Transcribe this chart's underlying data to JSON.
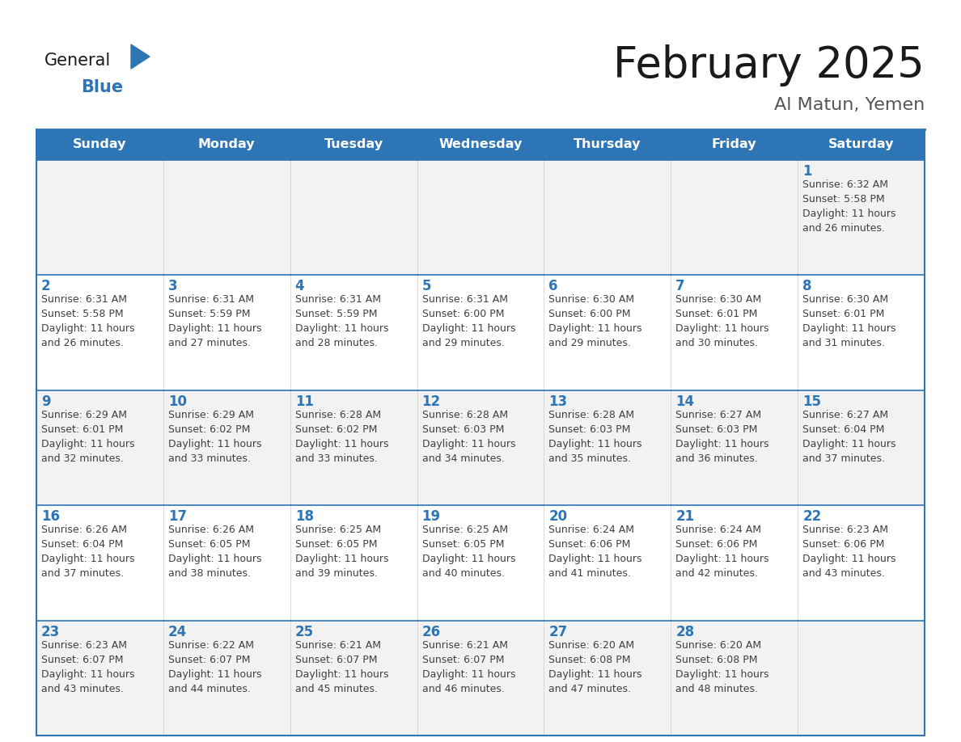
{
  "title": "February 2025",
  "subtitle": "Al Matun, Yemen",
  "days_of_week": [
    "Sunday",
    "Monday",
    "Tuesday",
    "Wednesday",
    "Thursday",
    "Friday",
    "Saturday"
  ],
  "header_bg": "#2E75B6",
  "header_text": "#FFFFFF",
  "cell_bg_even": "#F2F2F2",
  "cell_bg_odd": "#FFFFFF",
  "border_color": "#2E75B6",
  "day_num_color": "#2E75B6",
  "info_color": "#404040",
  "title_color": "#1a1a1a",
  "subtitle_color": "#555555",
  "weeks": [
    [
      null,
      null,
      null,
      null,
      null,
      null,
      1
    ],
    [
      2,
      3,
      4,
      5,
      6,
      7,
      8
    ],
    [
      9,
      10,
      11,
      12,
      13,
      14,
      15
    ],
    [
      16,
      17,
      18,
      19,
      20,
      21,
      22
    ],
    [
      23,
      24,
      25,
      26,
      27,
      28,
      null
    ]
  ],
  "cell_data": {
    "1": {
      "sunrise": "6:32 AM",
      "sunset": "5:58 PM",
      "daylight_hours": 11,
      "daylight_minutes": 26
    },
    "2": {
      "sunrise": "6:31 AM",
      "sunset": "5:58 PM",
      "daylight_hours": 11,
      "daylight_minutes": 26
    },
    "3": {
      "sunrise": "6:31 AM",
      "sunset": "5:59 PM",
      "daylight_hours": 11,
      "daylight_minutes": 27
    },
    "4": {
      "sunrise": "6:31 AM",
      "sunset": "5:59 PM",
      "daylight_hours": 11,
      "daylight_minutes": 28
    },
    "5": {
      "sunrise": "6:31 AM",
      "sunset": "6:00 PM",
      "daylight_hours": 11,
      "daylight_minutes": 29
    },
    "6": {
      "sunrise": "6:30 AM",
      "sunset": "6:00 PM",
      "daylight_hours": 11,
      "daylight_minutes": 29
    },
    "7": {
      "sunrise": "6:30 AM",
      "sunset": "6:01 PM",
      "daylight_hours": 11,
      "daylight_minutes": 30
    },
    "8": {
      "sunrise": "6:30 AM",
      "sunset": "6:01 PM",
      "daylight_hours": 11,
      "daylight_minutes": 31
    },
    "9": {
      "sunrise": "6:29 AM",
      "sunset": "6:01 PM",
      "daylight_hours": 11,
      "daylight_minutes": 32
    },
    "10": {
      "sunrise": "6:29 AM",
      "sunset": "6:02 PM",
      "daylight_hours": 11,
      "daylight_minutes": 33
    },
    "11": {
      "sunrise": "6:28 AM",
      "sunset": "6:02 PM",
      "daylight_hours": 11,
      "daylight_minutes": 33
    },
    "12": {
      "sunrise": "6:28 AM",
      "sunset": "6:03 PM",
      "daylight_hours": 11,
      "daylight_minutes": 34
    },
    "13": {
      "sunrise": "6:28 AM",
      "sunset": "6:03 PM",
      "daylight_hours": 11,
      "daylight_minutes": 35
    },
    "14": {
      "sunrise": "6:27 AM",
      "sunset": "6:03 PM",
      "daylight_hours": 11,
      "daylight_minutes": 36
    },
    "15": {
      "sunrise": "6:27 AM",
      "sunset": "6:04 PM",
      "daylight_hours": 11,
      "daylight_minutes": 37
    },
    "16": {
      "sunrise": "6:26 AM",
      "sunset": "6:04 PM",
      "daylight_hours": 11,
      "daylight_minutes": 37
    },
    "17": {
      "sunrise": "6:26 AM",
      "sunset": "6:05 PM",
      "daylight_hours": 11,
      "daylight_minutes": 38
    },
    "18": {
      "sunrise": "6:25 AM",
      "sunset": "6:05 PM",
      "daylight_hours": 11,
      "daylight_minutes": 39
    },
    "19": {
      "sunrise": "6:25 AM",
      "sunset": "6:05 PM",
      "daylight_hours": 11,
      "daylight_minutes": 40
    },
    "20": {
      "sunrise": "6:24 AM",
      "sunset": "6:06 PM",
      "daylight_hours": 11,
      "daylight_minutes": 41
    },
    "21": {
      "sunrise": "6:24 AM",
      "sunset": "6:06 PM",
      "daylight_hours": 11,
      "daylight_minutes": 42
    },
    "22": {
      "sunrise": "6:23 AM",
      "sunset": "6:06 PM",
      "daylight_hours": 11,
      "daylight_minutes": 43
    },
    "23": {
      "sunrise": "6:23 AM",
      "sunset": "6:07 PM",
      "daylight_hours": 11,
      "daylight_minutes": 43
    },
    "24": {
      "sunrise": "6:22 AM",
      "sunset": "6:07 PM",
      "daylight_hours": 11,
      "daylight_minutes": 44
    },
    "25": {
      "sunrise": "6:21 AM",
      "sunset": "6:07 PM",
      "daylight_hours": 11,
      "daylight_minutes": 45
    },
    "26": {
      "sunrise": "6:21 AM",
      "sunset": "6:07 PM",
      "daylight_hours": 11,
      "daylight_minutes": 46
    },
    "27": {
      "sunrise": "6:20 AM",
      "sunset": "6:08 PM",
      "daylight_hours": 11,
      "daylight_minutes": 47
    },
    "28": {
      "sunrise": "6:20 AM",
      "sunset": "6:08 PM",
      "daylight_hours": 11,
      "daylight_minutes": 48
    }
  }
}
